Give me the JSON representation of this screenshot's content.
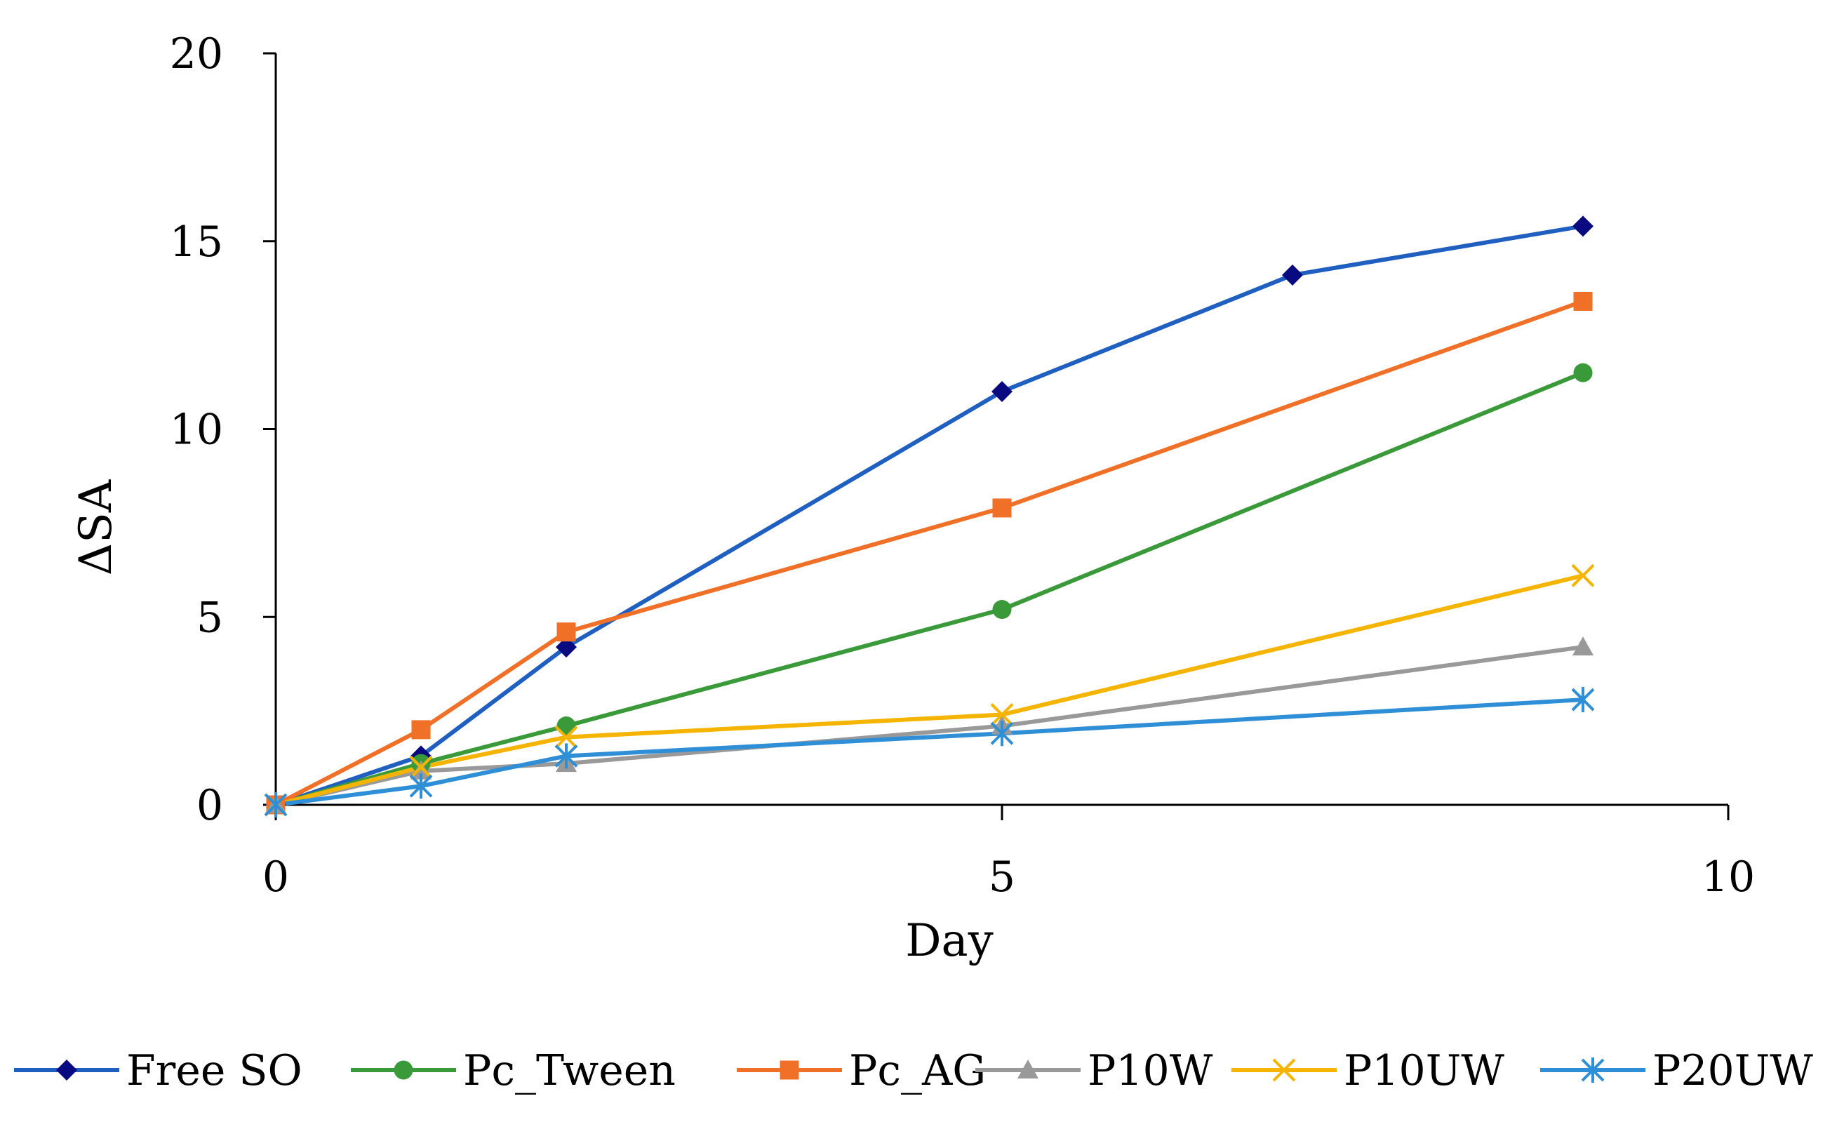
{
  "chart_data": {
    "type": "line",
    "title": "",
    "xlabel": "Day",
    "ylabel": "ΔSA",
    "xlim": [
      0,
      10
    ],
    "ylim": [
      0,
      20
    ],
    "xticks": [
      0,
      5,
      10
    ],
    "yticks": [
      0,
      5,
      10,
      15,
      20
    ],
    "xtick_labels": [
      "0",
      "5",
      "10"
    ],
    "ytick_labels": [
      "0",
      "5",
      "10",
      "15",
      "20"
    ],
    "grid": false,
    "legend_position": "bottom",
    "series": [
      {
        "name": "Free SO",
        "color": "#1f5fbf",
        "marker_color": "#0a0a80",
        "marker": "diamond",
        "x": [
          0,
          1,
          2,
          5,
          7,
          9
        ],
        "y": [
          0,
          1.3,
          4.2,
          11.0,
          14.1,
          15.4
        ]
      },
      {
        "name": "Pc_Tween",
        "color": "#3a9a3a",
        "marker_color": "#3a9a3a",
        "marker": "circle",
        "x": [
          0,
          1,
          2,
          5,
          9
        ],
        "y": [
          0,
          1.1,
          2.1,
          5.2,
          11.5
        ]
      },
      {
        "name": "Pc_AG",
        "color": "#f07028",
        "marker_color": "#f07028",
        "marker": "square",
        "x": [
          0,
          1,
          2,
          5,
          9
        ],
        "y": [
          0,
          2.0,
          4.6,
          7.9,
          13.4
        ]
      },
      {
        "name": "P10W",
        "color": "#999999",
        "marker_color": "#999999",
        "marker": "triangle",
        "x": [
          0,
          1,
          2,
          5,
          9
        ],
        "y": [
          0,
          0.9,
          1.1,
          2.1,
          4.2
        ]
      },
      {
        "name": "P10UW",
        "color": "#f5b400",
        "marker_color": "#f5b400",
        "marker": "x",
        "x": [
          0,
          1,
          2,
          5,
          9
        ],
        "y": [
          0,
          1.0,
          1.8,
          2.4,
          6.1
        ]
      },
      {
        "name": "P20UW",
        "color": "#2e8fd6",
        "marker_color": "#2e8fd6",
        "marker": "star",
        "x": [
          0,
          1,
          2,
          5,
          9
        ],
        "y": [
          0,
          0.5,
          1.3,
          1.9,
          2.8
        ]
      }
    ]
  }
}
